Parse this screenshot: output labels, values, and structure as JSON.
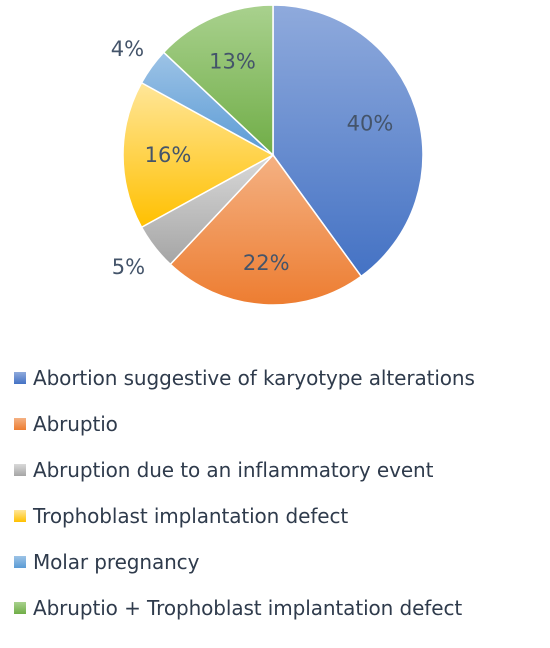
{
  "chart_data": {
    "type": "pie",
    "title": "",
    "categories": [
      "Abortion suggestive of karyotype alterations",
      "Abruptio",
      "Abruption due to an inflammatory event",
      "Trophoblast implantation defect",
      "Molar pregnancy",
      "Abruptio + Trophoblast implantation defect"
    ],
    "values": [
      40,
      22,
      5,
      16,
      4,
      13
    ],
    "labels": [
      "40%",
      "22%",
      "5%",
      "16%",
      "4%",
      "13%"
    ],
    "colors": [
      "#4472c4",
      "#ed7d31",
      "#a5a5a5",
      "#ffc000",
      "#5b9bd5",
      "#70ad47"
    ],
    "gradient_light": [
      "#8faadc",
      "#f4b183",
      "#d9d9d9",
      "#ffe699",
      "#9dc3e6",
      "#a9d18e"
    ],
    "legend_position": "bottom",
    "start_angle_deg": 0,
    "direction": "clockwise"
  }
}
